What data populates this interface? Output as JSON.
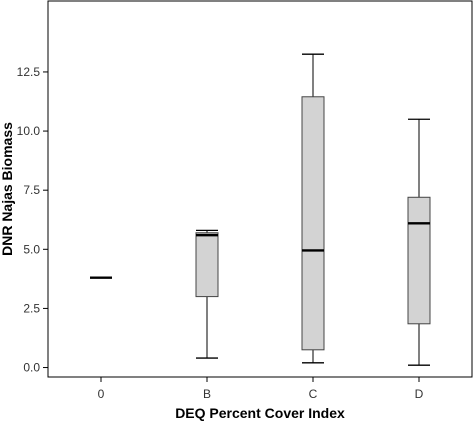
{
  "chart_data": {
    "type": "boxplot",
    "title": "",
    "xlabel": "DEQ Percent Cover Index",
    "ylabel": "DNR Najas Biomass",
    "categories": [
      "0",
      "B",
      "C",
      "D"
    ],
    "ylim": [
      -0.4,
      15.5
    ],
    "yticks": [
      "0.0",
      "2.5",
      "5.0",
      "7.5",
      "10.0",
      "12.5"
    ],
    "ytick_values": [
      0,
      2.5,
      5,
      7.5,
      10,
      12.5
    ],
    "grid": false,
    "legend": "none",
    "boxes": [
      {
        "category": "0",
        "min": 3.8,
        "q1": 3.8,
        "median": 3.8,
        "q3": 3.8,
        "max": 3.8
      },
      {
        "category": "B",
        "min": 0.4,
        "q1": 3.0,
        "median": 5.6,
        "q3": 5.7,
        "max": 5.8
      },
      {
        "category": "C",
        "min": 0.2,
        "q1": 0.75,
        "median": 4.95,
        "q3": 11.45,
        "max": 13.25
      },
      {
        "category": "D",
        "min": 0.1,
        "q1": 1.85,
        "median": 6.1,
        "q3": 7.2,
        "max": 10.5
      }
    ],
    "colors": {
      "box_fill": "#d3d3d3",
      "stroke": "#000000",
      "median": "#000000"
    }
  }
}
